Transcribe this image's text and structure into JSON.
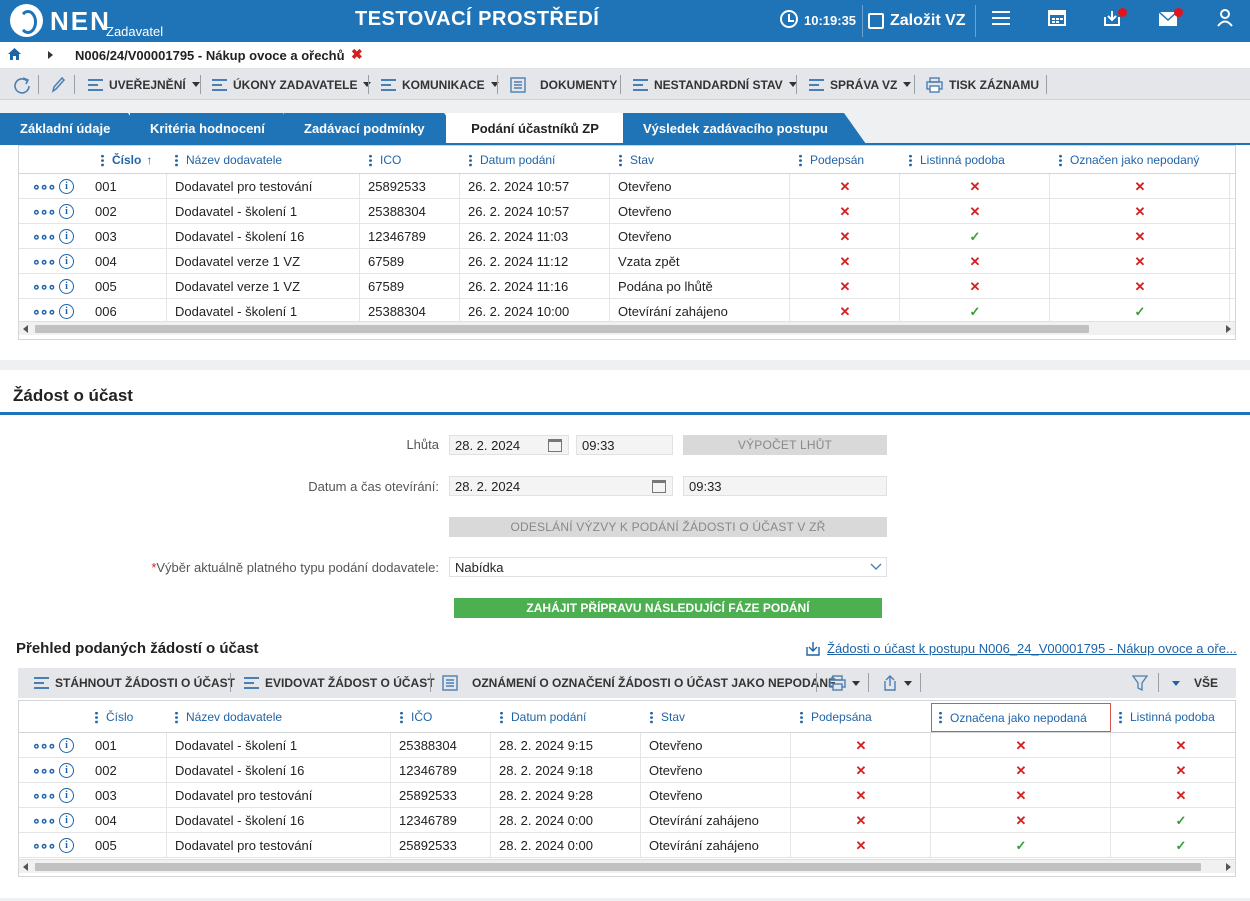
{
  "header": {
    "logo": "NEN",
    "logo_sub": "Zadavatel",
    "environment": "TESTOVACÍ PROSTŘEDÍ",
    "time": "10:19:35",
    "create_label": "Založit VZ"
  },
  "breadcrumb": {
    "item": "N006/24/V00001795 - Nákup ovoce a ořechů"
  },
  "toolbar": {
    "items": [
      "UVEŘEJNĚNÍ",
      "ÚKONY ZADAVATELE",
      "KOMUNIKACE",
      "DOKUMENTY",
      "NESTANDARDNÍ STAV",
      "SPRÁVA VZ",
      "TISK ZÁZNAMU"
    ]
  },
  "tabs": [
    "Základní údaje",
    "Kritéria hodnocení",
    "Zadávací podmínky",
    "Podání účastníků ZP",
    "Výsledek zadávacího postupu"
  ],
  "grid1": {
    "headers": [
      "Číslo",
      "Název dodavatele",
      "ICO",
      "Datum podání",
      "Stav",
      "Podepsán",
      "Listinná podoba",
      "Označen jako nepodaný"
    ],
    "rows": [
      {
        "c": "001",
        "n": "Dodavatel pro testování",
        "i": "25892533",
        "d": "26. 2. 2024 10:57",
        "s": "Otevřeno",
        "m": [
          "no",
          "no",
          "no"
        ]
      },
      {
        "c": "002",
        "n": "Dodavatel - školení 1",
        "i": "25388304",
        "d": "26. 2. 2024 10:57",
        "s": "Otevřeno",
        "m": [
          "no",
          "no",
          "no"
        ]
      },
      {
        "c": "003",
        "n": "Dodavatel - školení 16",
        "i": "12346789",
        "d": "26. 2. 2024 11:03",
        "s": "Otevřeno",
        "m": [
          "no",
          "yes",
          "no"
        ]
      },
      {
        "c": "004",
        "n": "Dodavatel verze 1 VZ",
        "i": "67589",
        "d": "26. 2. 2024 11:12",
        "s": "Vzata zpět",
        "m": [
          "no",
          "no",
          "no"
        ]
      },
      {
        "c": "005",
        "n": "Dodavatel verze 1 VZ",
        "i": "67589",
        "d": "26. 2. 2024 11:16",
        "s": "Podána po lhůtě",
        "m": [
          "no",
          "no",
          "no"
        ]
      },
      {
        "c": "006",
        "n": "Dodavatel - školení 1",
        "i": "25388304",
        "d": "26. 2. 2024 10:00",
        "s": "Otevírání zahájeno",
        "m": [
          "no",
          "yes",
          "yes"
        ]
      }
    ]
  },
  "section": {
    "title": "Žádost o účast",
    "lhuta_label": "Lhůta",
    "lhuta_date": "28. 2. 2024",
    "lhuta_time": "09:33",
    "vypocet_label": "VÝPOČET LHŮT",
    "otevirani_label": "Datum a čas otevírání:",
    "otevirani_date": "28. 2. 2024",
    "otevirani_time": "09:33",
    "odeslani_label": "ODESLÁNÍ VÝZVY K PODÁNÍ ŽÁDOSTI O ÚČAST V ZŘ",
    "vyber_required": "*",
    "vyber_label": "Výběr aktuálně platného typu podání dodavatele:",
    "vyber_value": "Nabídka",
    "zahajit_label": "ZAHÁJIT PŘÍPRAVU NÁSLEDUJÍCÍ FÁZE PODÁNÍ"
  },
  "overview": {
    "title": "Přehled podaných žádostí o účast",
    "link": "Žádosti o účast k postupu N006_24_V00001795 - Nákup ovoce a oře...",
    "toolbar": [
      "STÁHNOUT ŽÁDOSTI O ÚČAST",
      "EVIDOVAT ŽÁDOST O ÚČAST",
      "OZNÁMENÍ O OZNAČENÍ ŽÁDOSTI O ÚČAST JAKO NEPODANÉ"
    ],
    "all_label": "VŠE"
  },
  "grid2": {
    "headers": [
      "Číslo",
      "Název dodavatele",
      "IČO",
      "Datum podání",
      "Stav",
      "Podepsána",
      "Označena jako nepodaná",
      "Listinná podoba"
    ],
    "rows": [
      {
        "c": "001",
        "n": "Dodavatel - školení 1",
        "i": "25388304",
        "d": "28. 2. 2024 9:15",
        "s": "Otevřeno",
        "m": [
          "no",
          "no",
          "no"
        ]
      },
      {
        "c": "002",
        "n": "Dodavatel - školení 16",
        "i": "12346789",
        "d": "28. 2. 2024 9:18",
        "s": "Otevřeno",
        "m": [
          "no",
          "no",
          "no"
        ]
      },
      {
        "c": "003",
        "n": "Dodavatel pro testování",
        "i": "25892533",
        "d": "28. 2. 2024 9:28",
        "s": "Otevřeno",
        "m": [
          "no",
          "no",
          "no"
        ]
      },
      {
        "c": "004",
        "n": "Dodavatel - školení 16",
        "i": "12346789",
        "d": "28. 2. 2024 0:00",
        "s": "Otevírání zahájeno",
        "m": [
          "no",
          "no",
          "yes"
        ]
      },
      {
        "c": "005",
        "n": "Dodavatel pro testování",
        "i": "25892533",
        "d": "28. 2. 2024 0:00",
        "s": "Otevírání zahájeno",
        "m": [
          "no",
          "yes",
          "yes"
        ]
      }
    ]
  },
  "colors": {
    "brand": "#1f73b7",
    "success": "#4caf50",
    "error": "#d42020"
  }
}
